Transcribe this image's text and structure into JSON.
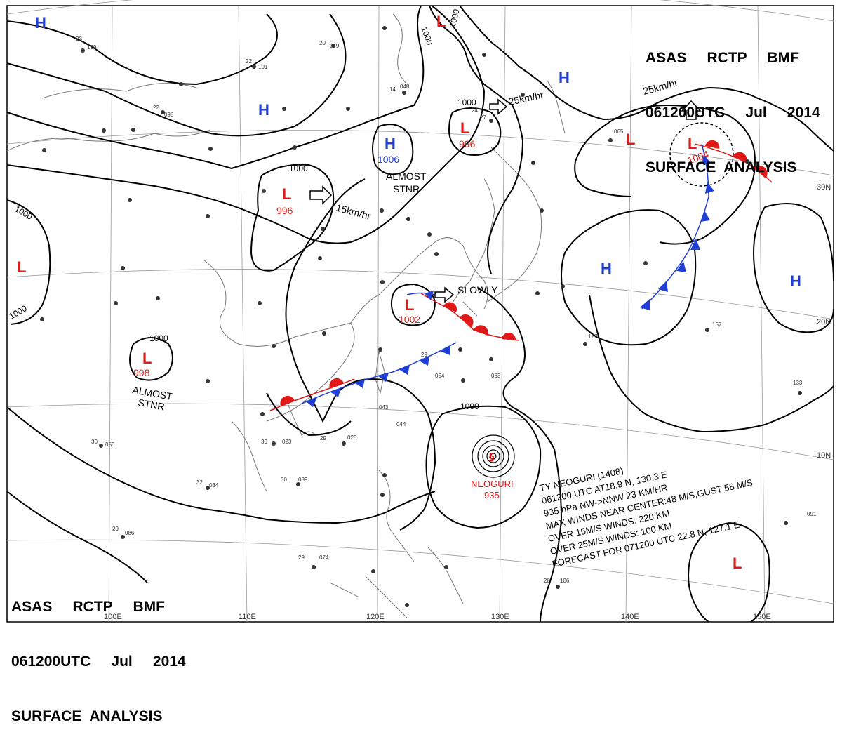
{
  "header_top": {
    "line1": "ASAS     RCTP     BMF",
    "line2": "061200UTC     Jul     2014",
    "line3": "SURFACE  ANALYSIS"
  },
  "header_bottom": {
    "line1": "ASAS     RCTP     BMF",
    "line2": "061200UTC     Jul     2014",
    "line3": "SURFACE  ANALYSIS"
  },
  "colors": {
    "high": "#1f3fd6",
    "low": "#e01818",
    "warm_front": "#e01818",
    "cold_front": "#1f3fd6",
    "isobar": "#000000",
    "grid": "#888888",
    "coast": "#666666"
  },
  "longitude_labels": [
    "100E",
    "110E",
    "120E",
    "130E",
    "140E",
    "150E"
  ],
  "latitude_labels": [
    "30N",
    "20N",
    "10N"
  ],
  "pressure_centers": [
    {
      "type": "H",
      "value": ""
    },
    {
      "type": "H",
      "value": ""
    },
    {
      "type": "H",
      "value": "1006"
    },
    {
      "type": "H",
      "value": ""
    },
    {
      "type": "H",
      "value": ""
    },
    {
      "type": "H",
      "value": ""
    },
    {
      "type": "L",
      "value": ""
    },
    {
      "type": "L",
      "value": "996"
    },
    {
      "type": "L",
      "value": "1004"
    },
    {
      "type": "L",
      "value": "996"
    },
    {
      "type": "L",
      "value": ""
    },
    {
      "type": "L",
      "value": "1002"
    },
    {
      "type": "L",
      "value": "998"
    },
    {
      "type": "L",
      "value": ""
    }
  ],
  "isobar_labels": [
    "1000",
    "1000",
    "1000",
    "1000",
    "1000",
    "1000",
    "1000",
    "1000"
  ],
  "annotations": {
    "almost_stnr_1_a": "ALMOST",
    "almost_stnr_1_b": "STNR",
    "almost_stnr_2_a": "ALMOST",
    "almost_stnr_2_b": "STNR",
    "speed_15": "15km/hr",
    "speed_25_a": "25km/hr",
    "speed_25_b": "25km/hr",
    "slowly": "SLOWLY"
  },
  "typhoon": {
    "name": "NEOGURI",
    "pressure": "935",
    "bulletin": [
      "TY  NEOGURI  (1408)",
      "061200 UTC  AT18.9 N, 130.3 E",
      "935 hPa  NW->NNW  23 KM/HR",
      "MAX WINDS NEAR CENTER:48 M/S,GUST 58 M/S",
      "OVER 15M/S WINDS: 220 KM",
      "OVER 25M/S WINDS: 100 KM",
      "FORECAST FOR 071200 UTC 22.8 N, 127.1 E"
    ]
  }
}
